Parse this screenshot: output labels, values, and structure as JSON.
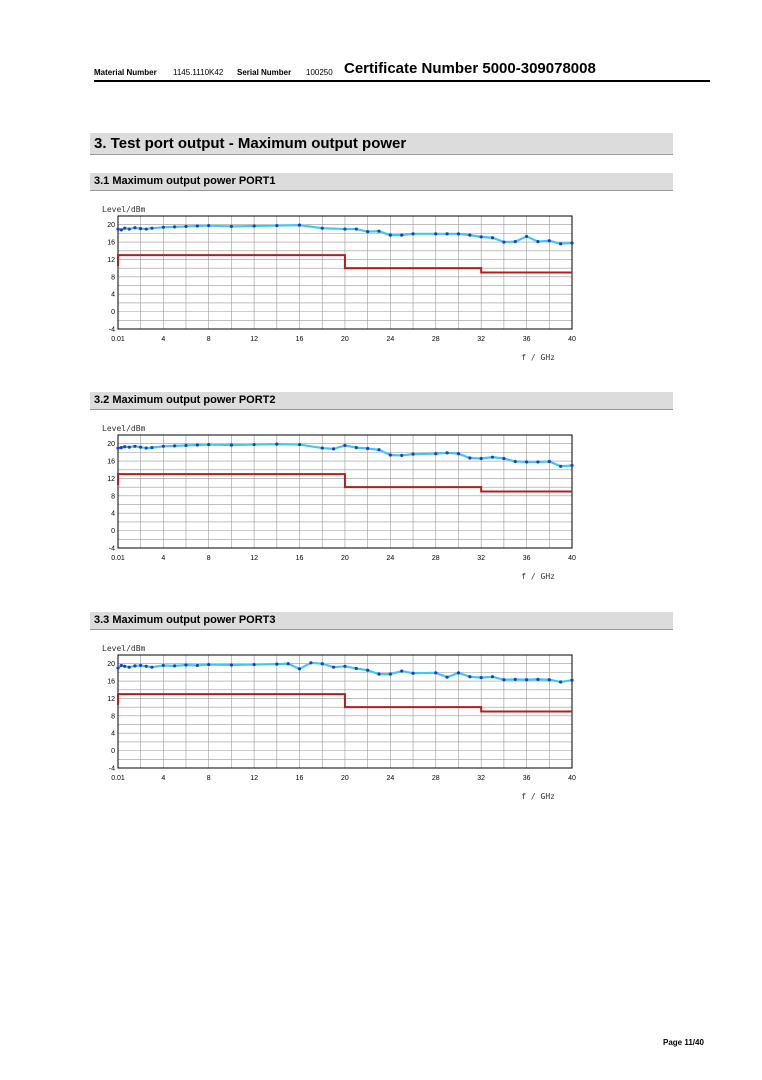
{
  "header": {
    "material_label": "Material Number",
    "material_value": "1145.1110K42",
    "serial_label": "Serial Number",
    "serial_value": "100250",
    "certificate": "Certificate Number  5000-309078008"
  },
  "section": {
    "title": "3.  Test port output - Maximum output power"
  },
  "subsections": [
    {
      "title": "3.1  Maximum output power PORT1"
    },
    {
      "title": "3.2  Maximum output power PORT2"
    },
    {
      "title": "3.3  Maximum output power PORT3"
    }
  ],
  "footer": {
    "page": "Page 11/40"
  },
  "colors": {
    "measured_line": "#40c8f0",
    "measured_marker": "#1e3cc8",
    "limit_line": "#b41e1e",
    "grid": "#999999"
  },
  "chart_data": [
    {
      "type": "line",
      "ylabel": "Level/dBm",
      "xlabel": "f / GHz",
      "x_tick_labels": [
        "0.01",
        "4",
        "8",
        "12",
        "16",
        "20",
        "24",
        "28",
        "32",
        "36",
        "40"
      ],
      "y_tick_labels": [
        "20",
        "16",
        "12",
        "8",
        "4",
        "0",
        "-4"
      ],
      "xlim": [
        0.01,
        40
      ],
      "ylim": [
        -4,
        22
      ],
      "grid": true,
      "series": [
        {
          "x": [
            0.01,
            0.3,
            0.6,
            1,
            1.5,
            2,
            2.5,
            3,
            4,
            5,
            6,
            7,
            8,
            10,
            12,
            14,
            16,
            18,
            20,
            21,
            22,
            23,
            24,
            25,
            26,
            28,
            29,
            30,
            31,
            32,
            33,
            34,
            35,
            36,
            37,
            38,
            39,
            40
          ],
          "y": [
            19.0,
            18.8,
            19.2,
            19.0,
            19.3,
            19.1,
            19.0,
            19.2,
            19.4,
            19.5,
            19.6,
            19.7,
            19.8,
            19.6,
            19.7,
            19.8,
            19.9,
            19.2,
            19.0,
            19.0,
            18.4,
            18.5,
            17.6,
            17.6,
            17.9,
            17.9,
            17.9,
            17.9,
            17.6,
            17.2,
            17.0,
            16.0,
            16.1,
            17.3,
            16.1,
            16.3,
            15.6,
            15.8
          ]
        },
        {
          "x": [
            0.01,
            0.01,
            20,
            20,
            32,
            32,
            40
          ],
          "y": [
            10.5,
            13,
            13,
            10,
            10,
            9,
            9
          ]
        }
      ]
    },
    {
      "type": "line",
      "ylabel": "Level/dBm",
      "xlabel": "f / GHz",
      "x_tick_labels": [
        "0.01",
        "4",
        "8",
        "12",
        "16",
        "20",
        "24",
        "28",
        "32",
        "36",
        "40"
      ],
      "y_tick_labels": [
        "20",
        "16",
        "12",
        "8",
        "4",
        "0",
        "-4"
      ],
      "xlim": [
        0.01,
        40
      ],
      "ylim": [
        -4,
        22
      ],
      "grid": true,
      "series": [
        {
          "x": [
            0.01,
            0.3,
            0.6,
            1,
            1.5,
            2,
            2.5,
            3,
            4,
            5,
            6,
            7,
            8,
            10,
            12,
            14,
            16,
            18,
            19,
            20,
            21,
            22,
            23,
            24,
            25,
            26,
            28,
            29,
            30,
            31,
            32,
            33,
            34,
            35,
            36,
            37,
            38,
            39,
            40
          ],
          "y": [
            19.0,
            19.1,
            19.3,
            19.2,
            19.4,
            19.2,
            19.0,
            19.1,
            19.4,
            19.5,
            19.6,
            19.7,
            19.8,
            19.7,
            19.8,
            19.9,
            19.8,
            19.0,
            18.8,
            19.6,
            19.1,
            18.9,
            18.6,
            17.4,
            17.3,
            17.6,
            17.7,
            17.9,
            17.7,
            16.7,
            16.6,
            16.9,
            16.6,
            15.9,
            15.8,
            15.8,
            15.9,
            14.8,
            15.0
          ]
        },
        {
          "x": [
            0.01,
            0.01,
            20,
            20,
            32,
            32,
            40
          ],
          "y": [
            10.5,
            13,
            13,
            10,
            10,
            9,
            9
          ]
        }
      ]
    },
    {
      "type": "line",
      "ylabel": "Level/dBm",
      "xlabel": "f / GHz",
      "x_tick_labels": [
        "0.01",
        "4",
        "8",
        "12",
        "16",
        "20",
        "24",
        "28",
        "32",
        "36",
        "40"
      ],
      "y_tick_labels": [
        "20",
        "16",
        "12",
        "8",
        "4",
        "0",
        "-4"
      ],
      "xlim": [
        0.01,
        40
      ],
      "ylim": [
        -4,
        22
      ],
      "grid": true,
      "series": [
        {
          "x": [
            0.01,
            0.3,
            0.6,
            1,
            1.5,
            2,
            2.5,
            3,
            4,
            5,
            6,
            7,
            8,
            10,
            12,
            14,
            15,
            16,
            17,
            18,
            19,
            20,
            21,
            22,
            23,
            24,
            25,
            26,
            28,
            29,
            30,
            31,
            32,
            33,
            34,
            35,
            36,
            37,
            38,
            39,
            40
          ],
          "y": [
            19.0,
            19.6,
            19.4,
            19.2,
            19.5,
            19.6,
            19.4,
            19.2,
            19.6,
            19.5,
            19.7,
            19.6,
            19.8,
            19.7,
            19.8,
            19.9,
            20.0,
            18.8,
            20.2,
            20.0,
            19.2,
            19.4,
            18.9,
            18.5,
            17.6,
            17.6,
            18.3,
            17.8,
            17.9,
            16.9,
            17.9,
            17.0,
            16.8,
            17.0,
            16.3,
            16.4,
            16.3,
            16.4,
            16.3,
            15.8,
            16.2
          ]
        },
        {
          "x": [
            0.01,
            0.01,
            20,
            20,
            32,
            32,
            40
          ],
          "y": [
            10.5,
            13,
            13,
            10,
            10,
            9,
            9
          ]
        }
      ]
    }
  ]
}
